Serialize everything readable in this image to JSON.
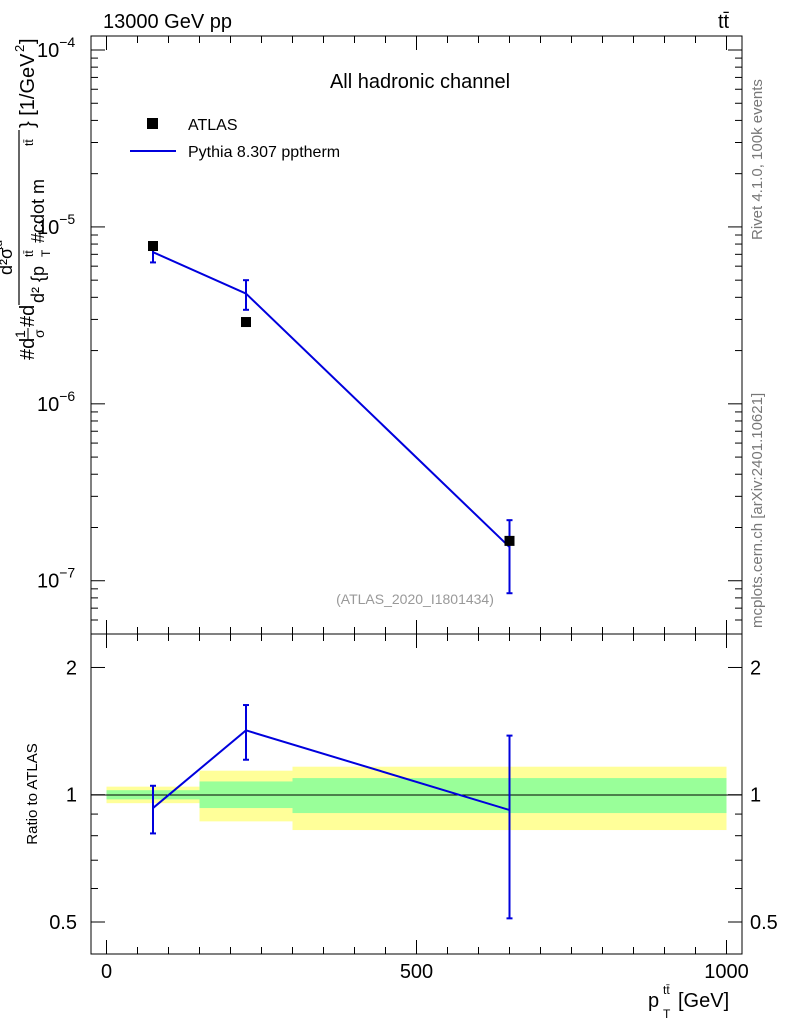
{
  "header": {
    "energy_label": "13000 GeV pp",
    "process_label": "tt̄"
  },
  "side_labels": {
    "rivet": "Rivet 4.1.0,  100k events",
    "source": "mcplots.cern.ch [arXiv:2401.10621]"
  },
  "chart_data": [
    {
      "type": "line",
      "panel": "main",
      "title": "All hadronic channel",
      "analysis_tag": "(ATLAS_2020_I1801434)",
      "ylabel": "#d\\frac{1}{\\sigma}#d\\frac{d^2\\sigma^{td}}{d^2 {p_T^{t\\bar{t}}#cdot m^{t\\bar{t}}}} [1/GeV^2]",
      "ylabel_parts": {
        "main": "#d",
        "frac1_num": "1",
        "frac1_den": "σ",
        "mid": "#d",
        "frac2_num": "d²σ",
        "frac2_num_sup": "td",
        "frac2_den": "d² {p",
        "frac2_den_sup": "tt̄",
        "frac2_den_sub": "T",
        "frac2_den_tail": "#cdot m",
        "frac2_den_tail_sup": "tt̄",
        "unit": "} [1/GeV",
        "unit_sup": "2",
        "unit_close": "]"
      },
      "xlim": [
        -25,
        1025
      ],
      "ylim": [
        5e-08,
        0.00012
      ],
      "yscale": "log",
      "y_tick_labels": [
        {
          "value": 1e-07,
          "base": "10",
          "exp": "−7"
        },
        {
          "value": 1e-06,
          "base": "10",
          "exp": "−6"
        },
        {
          "value": 1e-05,
          "base": "10",
          "exp": "−5"
        },
        {
          "value": 0.0001,
          "base": "10",
          "exp": "−4"
        }
      ],
      "legend": [
        {
          "name": "ATLAS",
          "style": "marker"
        },
        {
          "name": "Pythia 8.307 pptherm",
          "style": "line"
        }
      ],
      "series": [
        {
          "name": "ATLAS",
          "x": [
            75,
            225,
            650
          ],
          "y": [
            7.8e-06,
            2.9e-06,
            1.68e-07
          ]
        },
        {
          "name": "Pythia 8.307 pptherm",
          "x": [
            75,
            225,
            650
          ],
          "y": [
            7.2e-06,
            4.2e-06,
            1.55e-07
          ],
          "y_err_low": [
            6.3e-06,
            3.4e-06,
            8.5e-08
          ],
          "y_err_high": [
            8.2e-06,
            5e-06,
            2.2e-07
          ]
        }
      ]
    },
    {
      "type": "line",
      "panel": "ratio",
      "ylabel": "Ratio to ATLAS",
      "xlabel_base": "p",
      "xlabel_sup": "tt̄",
      "xlabel_sub": "T",
      "xlabel_unit": " [GeV]",
      "xlim": [
        -25,
        1025
      ],
      "ylim": [
        0.42,
        2.4
      ],
      "yscale": "log",
      "y_tick_labels": [
        "0.5",
        "1",
        "2"
      ],
      "y_ticks": [
        0.5,
        1,
        2
      ],
      "x_tick_labels": [
        "0",
        "500",
        "1000"
      ],
      "x_ticks": [
        0,
        500,
        1000
      ],
      "bands": [
        {
          "x_lo": 0,
          "x_hi": 150,
          "inner_lo": 0.975,
          "inner_hi": 1.025,
          "outer_lo": 0.955,
          "outer_hi": 1.045
        },
        {
          "x_lo": 150,
          "x_hi": 300,
          "inner_lo": 0.93,
          "inner_hi": 1.075,
          "outer_lo": 0.865,
          "outer_hi": 1.14
        },
        {
          "x_lo": 300,
          "x_hi": 1000,
          "inner_lo": 0.905,
          "inner_hi": 1.095,
          "outer_lo": 0.825,
          "outer_hi": 1.165
        }
      ],
      "band_colors": {
        "inner": "#99ff99",
        "outer": "#ffff99"
      },
      "series": [
        {
          "name": "Pythia 8.307 pptherm",
          "x": [
            75,
            225,
            650
          ],
          "y": [
            0.93,
            1.42,
            0.92
          ],
          "y_err_low": [
            0.81,
            1.21,
            0.51
          ],
          "y_err_high": [
            1.05,
            1.63,
            1.38
          ]
        }
      ]
    }
  ],
  "colors": {
    "mc_line": "#0000dd",
    "data_marker": "#000000"
  }
}
